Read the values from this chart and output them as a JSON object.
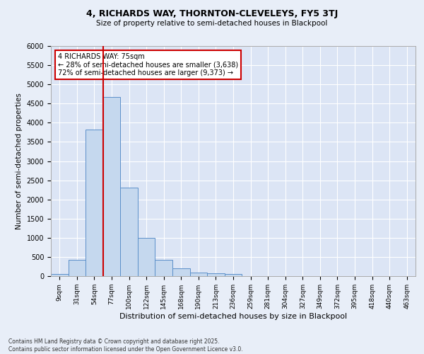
{
  "title": "4, RICHARDS WAY, THORNTON-CLEVELEYS, FY5 3TJ",
  "subtitle": "Size of property relative to semi-detached houses in Blackpool",
  "xlabel": "Distribution of semi-detached houses by size in Blackpool",
  "ylabel": "Number of semi-detached properties",
  "bar_labels": [
    "9sqm",
    "31sqm",
    "54sqm",
    "77sqm",
    "100sqm",
    "122sqm",
    "145sqm",
    "168sqm",
    "190sqm",
    "213sqm",
    "236sqm",
    "259sqm",
    "281sqm",
    "304sqm",
    "327sqm",
    "349sqm",
    "372sqm",
    "395sqm",
    "418sqm",
    "440sqm",
    "463sqm"
  ],
  "bar_values": [
    50,
    430,
    3820,
    4680,
    2300,
    1000,
    420,
    200,
    90,
    70,
    50,
    0,
    0,
    0,
    0,
    0,
    0,
    0,
    0,
    0,
    0
  ],
  "bar_color": "#c5d8ee",
  "bar_edge_color": "#5b8fc9",
  "vline_color": "#cc0000",
  "annotation_title": "4 RICHARDS WAY: 75sqm",
  "annotation_line1": "← 28% of semi-detached houses are smaller (3,638)",
  "annotation_line2": "72% of semi-detached houses are larger (9,373) →",
  "annotation_box_color": "#cc0000",
  "ylim": [
    0,
    6000
  ],
  "footnote": "Contains HM Land Registry data © Crown copyright and database right 2025.\nContains public sector information licensed under the Open Government Licence v3.0.",
  "bg_color": "#e8eef8",
  "plot_bg_color": "#dce5f5",
  "grid_color": "#ffffff"
}
